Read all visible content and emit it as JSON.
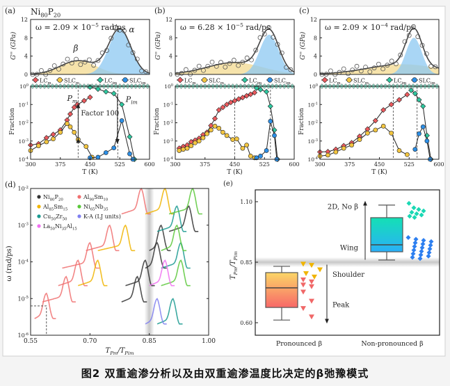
{
  "caption": "图2 双重逾渗分析以及由双重逾渗温度比决定的β弛豫模式",
  "colors": {
    "LCm": "#ec5a5e",
    "SLCm": "#f2c540",
    "LCim": "#2fc8a0",
    "SLCim": "#2d8fe6",
    "beta_fill": "#f3d98f",
    "alpha_fill": "#8cc8f2",
    "fit": "#444444"
  },
  "legend_abc": [
    {
      "label": "LC_{m}",
      "marker": "diamond",
      "color": "#ec5a5e"
    },
    {
      "label": "SLC_{m}",
      "marker": "circle",
      "color": "#f2c540"
    },
    {
      "label": "LC_{im}",
      "marker": "diamond",
      "color": "#2fc8a0"
    },
    {
      "label": "SLC_{im}",
      "marker": "circle",
      "color": "#2d8fe6"
    }
  ],
  "chart_data": [
    {
      "panel": "(a)",
      "type": "line",
      "material": "Ni_{80}P_{20}",
      "omega_label": "ω = 2.09 × 10^{−5} rad/ps",
      "xlabel": "T (K)",
      "xlim": [
        300,
        600
      ],
      "xticks": [
        "300",
        "375",
        "450",
        "525",
        "600"
      ],
      "gpp": {
        "ylabel": "G'' (GPa)",
        "ylim": [
          0,
          12
        ],
        "yticks": [
          "0",
          "4",
          "8",
          "12"
        ],
        "beta": {
          "label": "β",
          "center": 420,
          "amp": 3.0,
          "width": 45
        },
        "alpha": {
          "label": "α",
          "center": 525,
          "amp": 9.8,
          "width": 28
        }
      },
      "fraction": {
        "ylabel": "Fraction",
        "ylim": [
          0.0001,
          1
        ],
        "yticks": [
          "10^{0}",
          "10^{-1}",
          "10^{-2}",
          "10^{-3}",
          "10^{-4}"
        ],
        "dashed_T": [
          420,
          520
        ],
        "annotations": {
          "P_m": "P_{m}",
          "P_im": "P_{im}",
          "factor": "Factor 100"
        },
        "LCm": [
          [
            300,
            0.0006
          ],
          [
            320,
            0.0007
          ],
          [
            340,
            0.0015
          ],
          [
            357,
            0.0023
          ],
          [
            375,
            0.004
          ],
          [
            392,
            0.014
          ],
          [
            400,
            0.03
          ],
          [
            410,
            0.07
          ],
          [
            418,
            0.1
          ],
          [
            435,
            0.16
          ],
          [
            450,
            0.25
          ]
        ],
        "SLCm": [
          [
            300,
            0.0003
          ],
          [
            320,
            0.00055
          ],
          [
            340,
            0.0009
          ],
          [
            357,
            0.0013
          ],
          [
            375,
            0.003
          ],
          [
            392,
            0.009
          ],
          [
            400,
            0.006
          ],
          [
            410,
            0.003
          ],
          [
            420,
            0.0012
          ],
          [
            440,
            0.0005
          ],
          [
            455,
            0.00013
          ]
        ],
        "LCim": [
          [
            450,
            0.9
          ],
          [
            470,
            0.7
          ],
          [
            490,
            0.5
          ],
          [
            510,
            0.4
          ],
          [
            530,
            0.1
          ],
          [
            550,
            0.0017
          ],
          [
            562,
            0.0001
          ]
        ],
        "SLCim": [
          [
            450,
            0.00012
          ],
          [
            470,
            0.00013
          ],
          [
            490,
            0.00023
          ],
          [
            510,
            0.00042
          ],
          [
            530,
            0.013
          ],
          [
            550,
            0.0002
          ],
          [
            558,
            0.0001
          ]
        ]
      }
    },
    {
      "panel": "(b)",
      "type": "line",
      "omega_label": "ω = 6.28 × 10^{−5} rad/ps",
      "xlabel": "T (K)",
      "xlim": [
        300,
        600
      ],
      "xticks": [
        "300",
        "375",
        "450",
        "525",
        "600"
      ],
      "gpp": {
        "ylabel": "G'' (GPa)",
        "ylim": [
          0,
          12
        ],
        "yticks": [
          "0",
          "4",
          "8",
          "12"
        ],
        "beta": {
          "center": 450,
          "amp": 2.6,
          "width": 70
        },
        "alpha": {
          "center": 537,
          "amp": 8.7,
          "width": 24
        }
      },
      "fraction": {
        "ylabel": "Fraction",
        "ylim": [
          0.0001,
          1
        ],
        "yticks": [
          "10^{0}",
          "10^{-1}",
          "10^{-2}",
          "10^{-3}",
          "10^{-4}"
        ],
        "dashed_T": [
          450,
          540
        ],
        "LCm": [
          [
            310,
            0.0004
          ],
          [
            320,
            0.0005
          ],
          [
            330,
            0.0006
          ],
          [
            340,
            0.0009
          ],
          [
            350,
            0.0011
          ],
          [
            360,
            0.0014
          ],
          [
            370,
            0.0022
          ],
          [
            380,
            0.003
          ],
          [
            390,
            0.007
          ],
          [
            400,
            0.017
          ],
          [
            410,
            0.05
          ],
          [
            420,
            0.07
          ],
          [
            430,
            0.1
          ],
          [
            440,
            0.13
          ],
          [
            450,
            0.16
          ],
          [
            460,
            0.2
          ],
          [
            470,
            0.24
          ],
          [
            480,
            0.3
          ],
          [
            490,
            0.36
          ],
          [
            500,
            0.45
          ]
        ],
        "SLCm": [
          [
            310,
            0.0003
          ],
          [
            320,
            0.00035
          ],
          [
            330,
            0.0004
          ],
          [
            340,
            0.00055
          ],
          [
            350,
            0.0008
          ],
          [
            360,
            0.001
          ],
          [
            370,
            0.0015
          ],
          [
            380,
            0.0025
          ],
          [
            390,
            0.004
          ],
          [
            400,
            0.0065
          ],
          [
            410,
            0.005
          ],
          [
            420,
            0.003
          ],
          [
            430,
            0.002
          ],
          [
            445,
            0.0012
          ],
          [
            455,
            0.0013
          ],
          [
            470,
            0.0004
          ],
          [
            480,
            0.0006
          ],
          [
            490,
            0.00015
          ],
          [
            500,
            0.00012
          ]
        ],
        "LCim": [
          [
            505,
            0.8
          ],
          [
            515,
            0.65
          ],
          [
            530,
            0.5
          ],
          [
            540,
            0.08
          ],
          [
            550,
            0.004
          ],
          [
            558,
            0.0001
          ]
        ],
        "SLCim": [
          [
            505,
            0.00012
          ],
          [
            515,
            0.00015
          ],
          [
            530,
            0.0003
          ],
          [
            540,
            0.012
          ],
          [
            550,
            0.002
          ],
          [
            556,
            0.0001
          ]
        ]
      }
    },
    {
      "panel": "(c)",
      "type": "line",
      "omega_label": "ω = 2.09 × 10^{−4} rad/ps",
      "xlabel": "T (K)",
      "xlim": [
        300,
        600
      ],
      "xticks": [
        "300",
        "375",
        "450",
        "525",
        "600"
      ],
      "gpp": {
        "ylabel": "G'' (GPa)",
        "ylim": [
          0,
          12
        ],
        "yticks": [
          "0",
          "4",
          "8",
          "12"
        ],
        "beta": {
          "center": 510,
          "amp": 2.2,
          "width": 90
        },
        "alpha": {
          "center": 537,
          "amp": 8.0,
          "width": 20
        }
      },
      "fraction": {
        "ylabel": "Fraction",
        "ylim": [
          0.0001,
          1
        ],
        "yticks": [
          "10^{0}",
          "10^{-1}",
          "10^{-2}",
          "10^{-3}",
          "10^{-4}"
        ],
        "dashed_T": [
          485,
          545
        ],
        "LCm": [
          [
            300,
            0.00025
          ],
          [
            320,
            0.00026
          ],
          [
            340,
            0.00035
          ],
          [
            360,
            0.00055
          ],
          [
            380,
            0.0008
          ],
          [
            400,
            0.0018
          ],
          [
            420,
            0.0045
          ],
          [
            440,
            0.013
          ],
          [
            460,
            0.05
          ],
          [
            480,
            0.1
          ],
          [
            500,
            0.18
          ],
          [
            520,
            0.35
          ]
        ],
        "SLCm": [
          [
            300,
            0.00015
          ],
          [
            320,
            0.00017
          ],
          [
            340,
            0.00025
          ],
          [
            360,
            0.0004
          ],
          [
            380,
            0.0006
          ],
          [
            400,
            0.0012
          ],
          [
            420,
            0.0027
          ],
          [
            440,
            0.004
          ],
          [
            460,
            0.0065
          ],
          [
            480,
            0.0027
          ],
          [
            500,
            0.0003
          ],
          [
            520,
            0.00018
          ]
        ],
        "LCim": [
          [
            530,
            0.6
          ],
          [
            540,
            0.4
          ],
          [
            550,
            0.18
          ],
          [
            560,
            0.08
          ],
          [
            570,
            0.002
          ],
          [
            580,
            0.0001
          ]
        ],
        "SLCim": [
          [
            540,
            0.00035
          ],
          [
            550,
            0.0025
          ],
          [
            560,
            0.006
          ],
          [
            570,
            0.001
          ],
          [
            578,
            0.0001
          ]
        ]
      }
    },
    {
      "panel": "(d)",
      "type": "line",
      "xlabel": "T_{P_m}/T_{P_im}",
      "ylabel": "ω (rad/ps)",
      "xlim": [
        0.55,
        1.0
      ],
      "xticks": [
        "0.55",
        "0.70",
        "0.85",
        "1.00"
      ],
      "ylim": [
        1e-06,
        0.01
      ],
      "yticks": [
        "10^{-2}",
        "10^{-3}",
        "10^{-4}",
        "10^{-5}",
        "10^{-6}"
      ],
      "band_x": 0.85,
      "legend": [
        {
          "label": "Ni_{80}P_{20}",
          "color": "#333333"
        },
        {
          "label": "Al_{90}Sm_{10}",
          "color": "#f07070"
        },
        {
          "label": "Al_{85}Sm_{15}",
          "color": "#f0b400"
        },
        {
          "label": "Ni_{65}Nb_{35}",
          "color": "#5ac83a"
        },
        {
          "label": "Cu_{50}Zr_{50}",
          "color": "#1a9a90"
        },
        {
          "label": "K-A (LJ units)",
          "color": "#8080f0"
        },
        {
          "label": "La_{50}Ni_{35}Al_{15}",
          "color": "#f070f0"
        }
      ],
      "series": [
        {
          "system": 1,
          "curves": [
            [
              0.56,
              0.59,
              6.3e-06
            ],
            [
              0.58,
              0.64,
              1.8e-05
            ],
            [
              0.62,
              0.67,
              5e-05
            ],
            [
              0.63,
              0.7,
              0.00015
            ],
            [
              0.69,
              0.75,
              0.00045
            ],
            [
              0.78,
              0.83,
              0.0045
            ]
          ]
        },
        {
          "system": 2,
          "curves": [
            [
              0.67,
              0.72,
              5e-05
            ],
            [
              0.72,
              0.79,
              0.00045
            ],
            [
              0.84,
              0.89,
              0.0045
            ]
          ]
        },
        {
          "system": 0,
          "curves": [
            [
              0.78,
              0.82,
              1.8e-05
            ],
            [
              0.79,
              0.84,
              5e-05
            ],
            [
              0.84,
              0.87,
              0.00015
            ],
            [
              0.85,
              0.88,
              0.00045
            ],
            [
              0.9,
              0.95,
              0.0015
            ]
          ]
        },
        {
          "system": 4,
          "curves": [
            [
              0.87,
              0.91,
              4.5e-06
            ],
            [
              0.88,
              0.93,
              0.00015
            ],
            [
              0.87,
              0.92,
              0.0015
            ]
          ]
        },
        {
          "system": 3,
          "curves": [
            [
              0.88,
              0.93,
              5e-05
            ],
            [
              0.88,
              0.92,
              0.00045
            ],
            [
              0.9,
              0.96,
              0.0045
            ]
          ]
        },
        {
          "system": 6,
          "curves": [
            [
              0.85,
              0.89,
              5e-05
            ]
          ]
        },
        {
          "system": 5,
          "curves": [
            [
              0.84,
              0.87,
              4.5e-06
            ]
          ]
        }
      ],
      "guide_point": [
        0.59,
        6.3e-06
      ]
    },
    {
      "panel": "(e)",
      "type": "box",
      "ylabel": "T_{P_m}/T_{P_im}",
      "ylim": [
        0.55,
        1.15
      ],
      "yticks": [
        "0.60",
        "0.85",
        "1.10"
      ],
      "band_y": 0.85,
      "categories": [
        "Pronounced β",
        "Non-pronounced β"
      ],
      "boxes": [
        {
          "whisker_low": 0.611,
          "q1": 0.663,
          "median": 0.744,
          "q3": 0.807,
          "whisker_high": 0.833,
          "top_color": "#fbd667",
          "bottom_color": "#f86868"
        },
        {
          "whisker_low": 0.859,
          "q1": 0.893,
          "median": 0.922,
          "q3": 1.034,
          "whisker_high": 1.086,
          "top_color": "#14e0b4",
          "bottom_color": "#2ab0f8"
        }
      ],
      "points_pronounced": {
        "yellow": [
          0.843,
          0.838,
          0.82,
          0.804,
          0.79
        ],
        "red": [
          0.778,
          0.77,
          0.757,
          0.75,
          0.728,
          0.69,
          0.66,
          0.625
        ]
      },
      "points_nonpronounced": {
        "cyan": [
          1.093,
          1.075,
          1.068,
          1.062,
          1.056,
          1.05,
          1.045,
          1.04,
          1.035
        ],
        "blue": [
          0.952,
          0.945,
          0.94,
          0.935,
          0.93,
          0.925,
          0.92,
          0.915,
          0.91,
          0.905,
          0.9,
          0.895,
          0.89,
          0.885,
          0.88,
          0.875,
          0.87,
          0.865
        ]
      },
      "annotations": {
        "up": "2D, No β",
        "wing": "Wing",
        "shoulder": "Shoulder",
        "peak": "Peak"
      }
    }
  ]
}
